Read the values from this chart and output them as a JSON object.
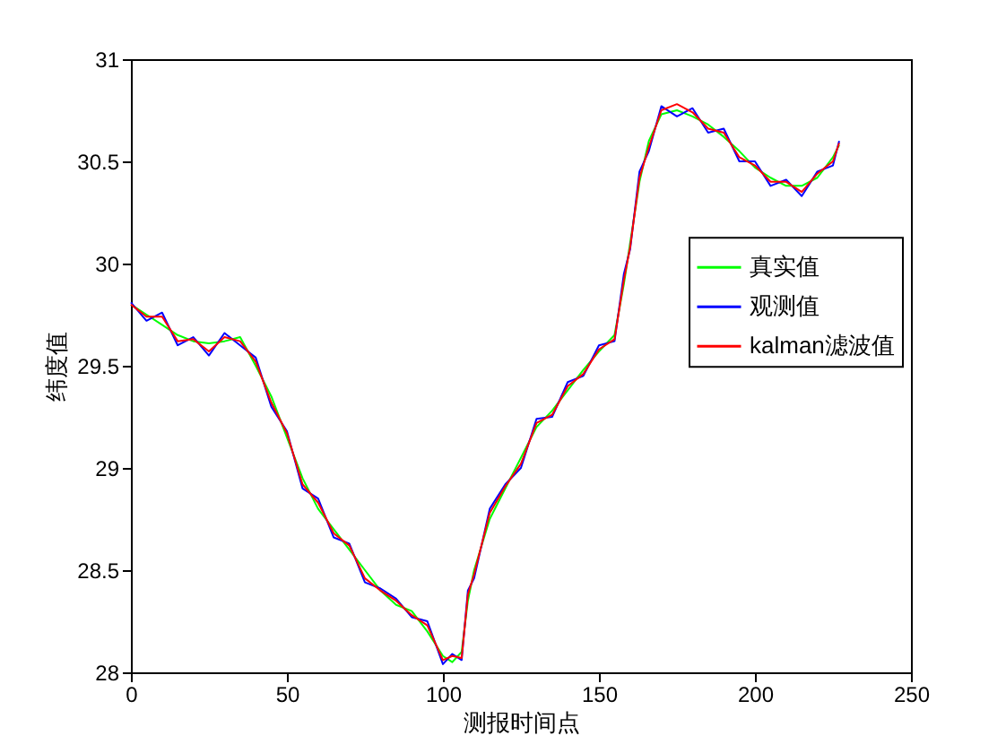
{
  "chart_data": {
    "type": "line",
    "xlabel": "测报时间点",
    "ylabel": "纬度值",
    "x": [
      0,
      5,
      10,
      15,
      20,
      25,
      30,
      35,
      40,
      45,
      50,
      55,
      60,
      65,
      70,
      75,
      80,
      85,
      90,
      95,
      100,
      103,
      106,
      108,
      110,
      115,
      120,
      125,
      130,
      135,
      140,
      145,
      150,
      155,
      158,
      160,
      163,
      166,
      170,
      175,
      180,
      185,
      190,
      195,
      200,
      205,
      210,
      215,
      220,
      225,
      227
    ],
    "series": [
      {
        "name": "真实值",
        "color": "#00ff00",
        "values": [
          29.8,
          29.75,
          29.7,
          29.65,
          29.62,
          29.61,
          29.62,
          29.64,
          29.5,
          29.35,
          29.15,
          28.95,
          28.8,
          28.7,
          28.6,
          28.5,
          28.4,
          28.33,
          28.3,
          28.2,
          28.08,
          28.05,
          28.1,
          28.35,
          28.5,
          28.75,
          28.9,
          29.05,
          29.2,
          29.28,
          29.38,
          29.48,
          29.57,
          29.65,
          29.9,
          30.1,
          30.4,
          30.6,
          30.73,
          30.75,
          30.72,
          30.68,
          30.62,
          30.55,
          30.47,
          30.42,
          30.38,
          30.38,
          30.42,
          30.52,
          30.58
        ]
      },
      {
        "name": "观测值",
        "color": "#0000ff",
        "values": [
          29.81,
          29.72,
          29.76,
          29.6,
          29.64,
          29.55,
          29.66,
          29.6,
          29.54,
          29.3,
          29.18,
          28.9,
          28.85,
          28.66,
          28.63,
          28.44,
          28.41,
          28.36,
          28.27,
          28.25,
          28.04,
          28.09,
          28.06,
          28.4,
          28.46,
          28.8,
          28.92,
          29.0,
          29.24,
          29.25,
          29.42,
          29.45,
          29.6,
          29.62,
          29.95,
          30.07,
          30.45,
          30.55,
          30.77,
          30.72,
          30.76,
          30.64,
          30.66,
          30.5,
          30.5,
          30.38,
          30.41,
          30.33,
          30.45,
          30.48,
          30.6
        ]
      },
      {
        "name": "kalman滤波值",
        "color": "#ff0000",
        "values": [
          29.8,
          29.74,
          29.74,
          29.62,
          29.63,
          29.57,
          29.64,
          29.62,
          29.52,
          29.32,
          29.17,
          28.92,
          28.83,
          28.68,
          28.62,
          28.46,
          28.4,
          28.35,
          28.28,
          28.23,
          28.06,
          28.08,
          28.07,
          28.38,
          28.48,
          28.78,
          28.91,
          29.02,
          29.22,
          29.26,
          29.4,
          29.46,
          29.58,
          29.63,
          29.92,
          30.08,
          30.42,
          30.57,
          30.75,
          30.78,
          30.74,
          30.66,
          30.64,
          30.52,
          30.48,
          30.4,
          30.4,
          30.35,
          30.44,
          30.5,
          30.59
        ]
      }
    ],
    "xlim": [
      0,
      250
    ],
    "xticks": [
      0,
      50,
      100,
      150,
      200,
      250
    ],
    "ylim": [
      28,
      31
    ],
    "yticks": [
      28,
      28.5,
      29,
      29.5,
      30,
      30.5,
      31
    ],
    "legend": "right",
    "grid": false,
    "marker": "none",
    "line_style": "solid"
  }
}
